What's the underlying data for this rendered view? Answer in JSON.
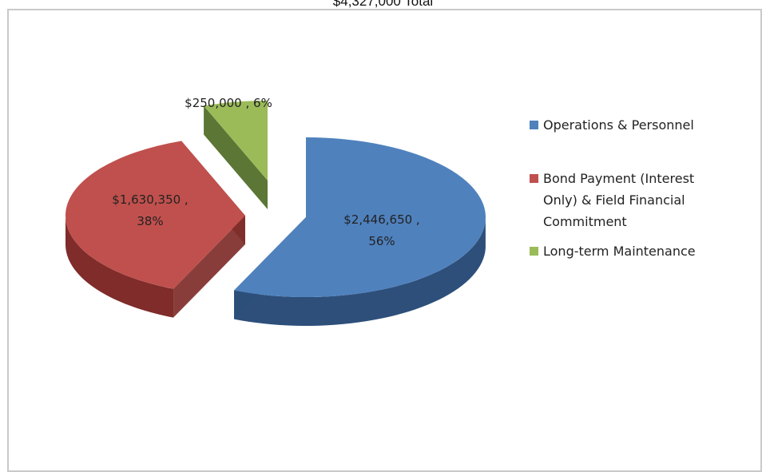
{
  "chart_data": {
    "type": "pie",
    "title": "$4,327,000 Total",
    "slices": [
      {
        "label": "Operations & Personnel",
        "value": 2446650,
        "percent": 56,
        "data_label_lines": [
          "$2,446,650 ,",
          "56%"
        ],
        "color": "#4f81bd",
        "side_color": "#2d4f7a"
      },
      {
        "label": "Bond Payment (Interest Only) & Field Financial Commitment",
        "legend_lines": [
          "Bond Payment (Interest",
          "Only) & Field Financial",
          "Commitment"
        ],
        "value": 1630350,
        "percent": 38,
        "data_label_lines": [
          "$1,630,350 ,",
          "38%"
        ],
        "color": "#c0504d",
        "side_color": "#7f2c2a"
      },
      {
        "label": "Long-term Maintenance",
        "value": 250000,
        "percent": 6,
        "data_label_lines": [
          "$250,000 , 6%"
        ],
        "color": "#9bbb59",
        "side_color": "#4d6a24"
      }
    ],
    "style": "3d-exploded",
    "legend_position": "right"
  }
}
